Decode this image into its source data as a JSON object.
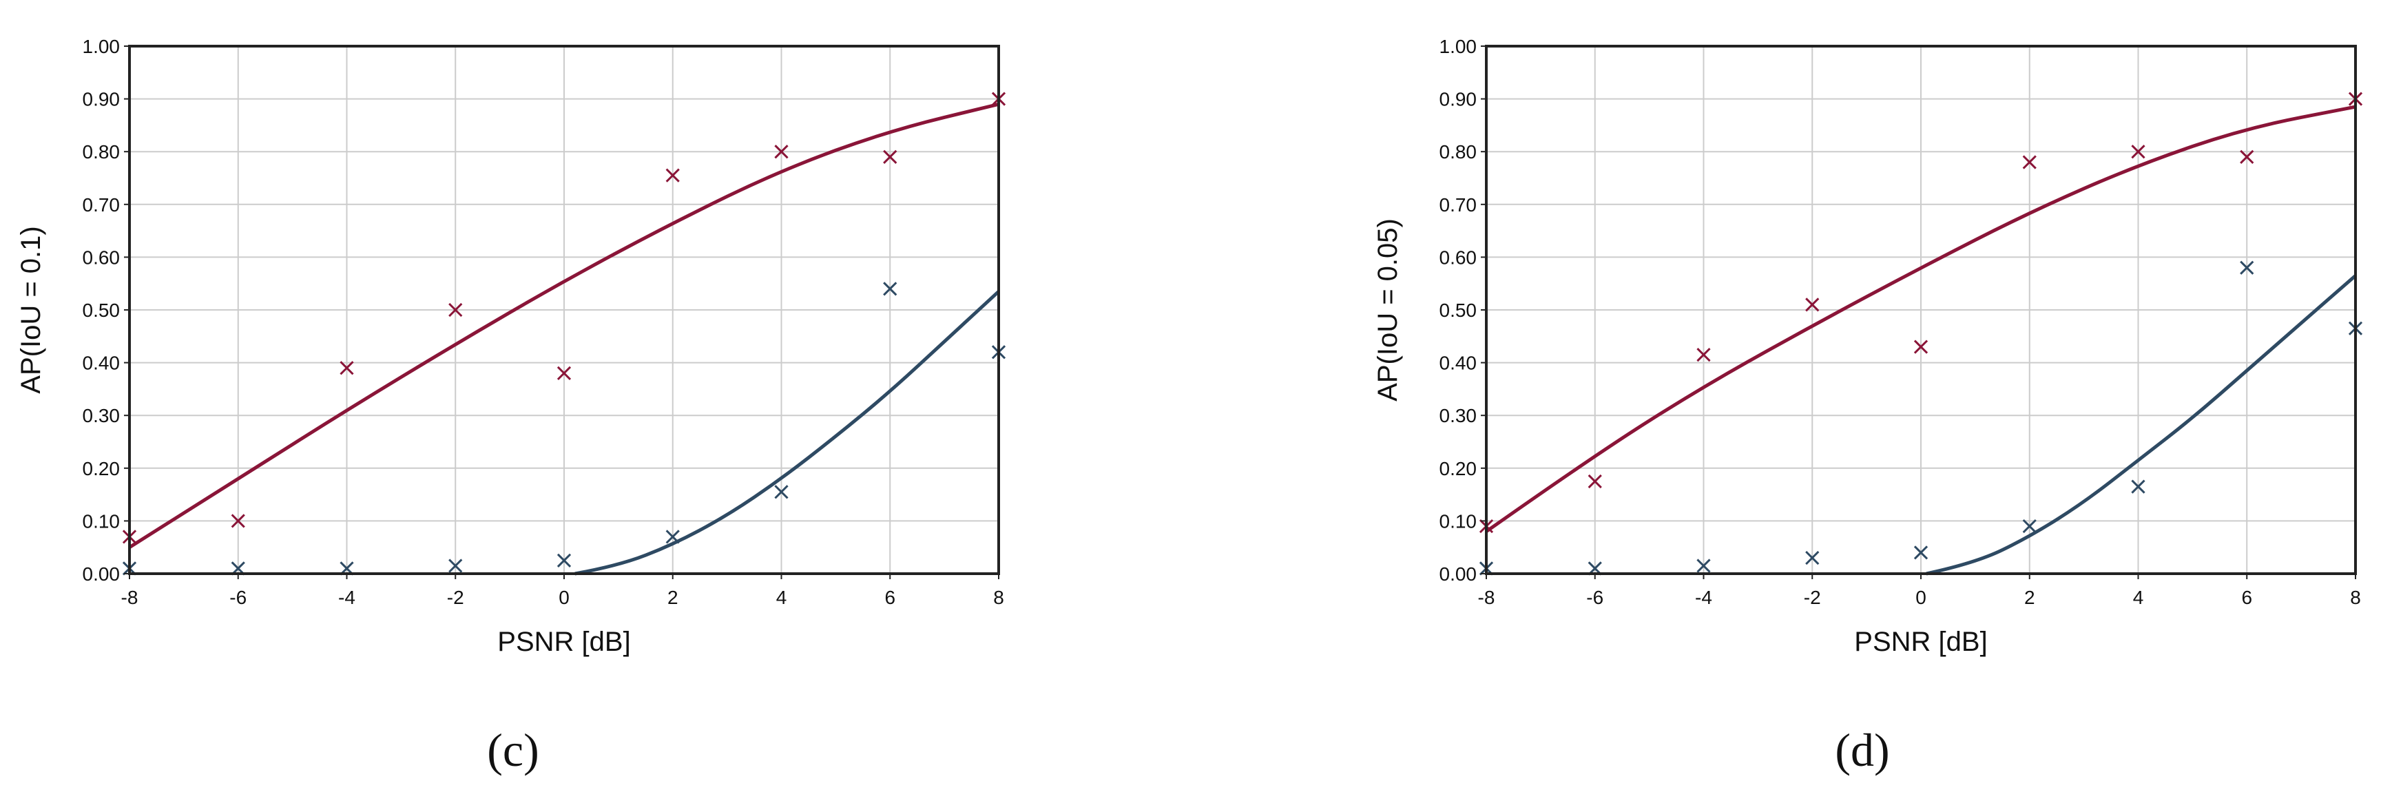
{
  "colors": {
    "series_a": "#8a1538",
    "series_b": "#2e4a63"
  },
  "chart_data": [
    {
      "type": "scatter",
      "panel_label": "(c)",
      "xlabel": "PSNR [dB]",
      "ylabel": "AP(IoU = 0.1)",
      "xlim": [
        -8,
        8
      ],
      "ylim": [
        0,
        1
      ],
      "xticks": [
        "-8",
        "-6",
        "-4",
        "-2",
        "0",
        "2",
        "4",
        "6",
        "8"
      ],
      "yticks": [
        "0.00",
        "0.10",
        "0.20",
        "0.30",
        "0.40",
        "0.50",
        "0.60",
        "0.70",
        "0.80",
        "0.90",
        "1.00"
      ],
      "grid": true,
      "series": [
        {
          "color_key": "series_a",
          "points": [
            [
              -8,
              0.07
            ],
            [
              -6,
              0.1
            ],
            [
              -4,
              0.39
            ],
            [
              -2,
              0.5
            ],
            [
              0,
              0.38
            ],
            [
              2,
              0.755
            ],
            [
              4,
              0.8
            ],
            [
              6,
              0.79
            ],
            [
              8,
              0.9
            ]
          ],
          "fit": [
            [
              -8,
              0.05
            ],
            [
              -6,
              0.18
            ],
            [
              -4,
              0.31
            ],
            [
              -2,
              0.435
            ],
            [
              0,
              0.555
            ],
            [
              2,
              0.665
            ],
            [
              4,
              0.765
            ],
            [
              6,
              0.84
            ],
            [
              8,
              0.89
            ]
          ]
        },
        {
          "color_key": "series_b",
          "points": [
            [
              -8,
              0.01
            ],
            [
              -6,
              0.01
            ],
            [
              -4,
              0.01
            ],
            [
              -2,
              0.015
            ],
            [
              0,
              0.025
            ],
            [
              2,
              0.07
            ],
            [
              4,
              0.155
            ],
            [
              6,
              0.54
            ],
            [
              8,
              0.42
            ]
          ],
          "fit": [
            [
              0.2,
              0.0
            ],
            [
              1,
              0.015
            ],
            [
              2,
              0.055
            ],
            [
              3,
              0.11
            ],
            [
              4,
              0.18
            ],
            [
              5,
              0.26
            ],
            [
              6,
              0.345
            ],
            [
              7,
              0.44
            ],
            [
              8,
              0.535
            ]
          ]
        }
      ]
    },
    {
      "type": "scatter",
      "panel_label": "(d)",
      "xlabel": "PSNR [dB]",
      "ylabel": "AP(IoU = 0.05)",
      "xlim": [
        -8,
        8
      ],
      "ylim": [
        0,
        1
      ],
      "xticks": [
        "-8",
        "-6",
        "-4",
        "-2",
        "0",
        "2",
        "4",
        "6",
        "8"
      ],
      "yticks": [
        "0.00",
        "0.10",
        "0.20",
        "0.30",
        "0.40",
        "0.50",
        "0.60",
        "0.70",
        "0.80",
        "0.90",
        "1.00"
      ],
      "grid": true,
      "series": [
        {
          "color_key": "series_a",
          "points": [
            [
              -8,
              0.09
            ],
            [
              -6,
              0.175
            ],
            [
              -4,
              0.415
            ],
            [
              -2,
              0.51
            ],
            [
              0,
              0.43
            ],
            [
              2,
              0.78
            ],
            [
              4,
              0.8
            ],
            [
              6,
              0.79
            ],
            [
              8,
              0.9
            ]
          ],
          "fit": [
            [
              -8,
              0.08
            ],
            [
              -6,
              0.225
            ],
            [
              -4,
              0.355
            ],
            [
              -2,
              0.47
            ],
            [
              0,
              0.58
            ],
            [
              2,
              0.685
            ],
            [
              4,
              0.775
            ],
            [
              6,
              0.845
            ],
            [
              8,
              0.885
            ]
          ]
        },
        {
          "color_key": "series_b",
          "points": [
            [
              -8,
              0.01
            ],
            [
              -6,
              0.01
            ],
            [
              -4,
              0.015
            ],
            [
              -2,
              0.03
            ],
            [
              0,
              0.04
            ],
            [
              2,
              0.09
            ],
            [
              4,
              0.165
            ],
            [
              6,
              0.58
            ],
            [
              8,
              0.465
            ]
          ],
          "fit": [
            [
              0.1,
              0.0
            ],
            [
              1,
              0.02
            ],
            [
              2,
              0.07
            ],
            [
              3,
              0.135
            ],
            [
              4,
              0.215
            ],
            [
              5,
              0.295
            ],
            [
              6,
              0.385
            ],
            [
              7,
              0.475
            ],
            [
              8,
              0.565
            ]
          ]
        }
      ]
    }
  ]
}
